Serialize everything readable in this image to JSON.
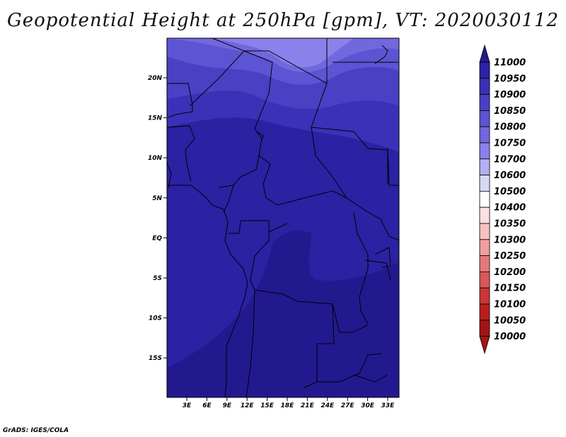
{
  "title": "Geopotential Height at 250hPa [gpm], VT: 2020030112",
  "credit": "GrADS: IGES/COLA",
  "map": {
    "lon_labels": [
      "3E",
      "6E",
      "9E",
      "12E",
      "15E",
      "18E",
      "21E",
      "24E",
      "27E",
      "30E",
      "33E"
    ],
    "lat_labels": [
      "20N",
      "15N",
      "10N",
      "5N",
      "EQ",
      "5S",
      "10S",
      "15S"
    ]
  },
  "colorbar": {
    "levels": [
      "11000",
      "10950",
      "10900",
      "10850",
      "10800",
      "10750",
      "10700",
      "10600",
      "10500",
      "10400",
      "10350",
      "10300",
      "10250",
      "10200",
      "10150",
      "10100",
      "10050",
      "10000"
    ],
    "colors": [
      "#23198f",
      "#2c22a6",
      "#3a31b8",
      "#4940c4",
      "#5c54d2",
      "#7268de",
      "#8a81ea",
      "#b2aff2",
      "#d8d8f7",
      "#ffffff",
      "#fde0e0",
      "#f8c2c2",
      "#ef9f9f",
      "#e47a7a",
      "#d95858",
      "#cc3535",
      "#b81e1e",
      "#a31414"
    ]
  },
  "chart_data": {
    "type": "heatmap",
    "title": "Geopotential Height at 250hPa [gpm], VT: 2020030112",
    "x_range": [
      "0E",
      "35E"
    ],
    "y_range": [
      "20S",
      "24N"
    ],
    "units": "gpm",
    "contour_levels": [
      10000,
      10050,
      10100,
      10150,
      10200,
      10250,
      10300,
      10350,
      10400,
      10500,
      10600,
      10700,
      10750,
      10800,
      10850,
      10900,
      10950,
      11000
    ],
    "approx_field": [
      {
        "lat": "23N",
        "value_range": [
          10750,
          10800
        ]
      },
      {
        "lat": "20N",
        "value_range": [
          10800,
          10850
        ]
      },
      {
        "lat": "16N",
        "value_range": [
          10850,
          10900
        ]
      },
      {
        "lat": "10N",
        "value_range": [
          10900,
          10950
        ]
      },
      {
        "lat": "EQ",
        "value_range": [
          10900,
          10950
        ]
      },
      {
        "lat": "10S",
        "value_range": [
          10950,
          11000
        ]
      }
    ]
  }
}
